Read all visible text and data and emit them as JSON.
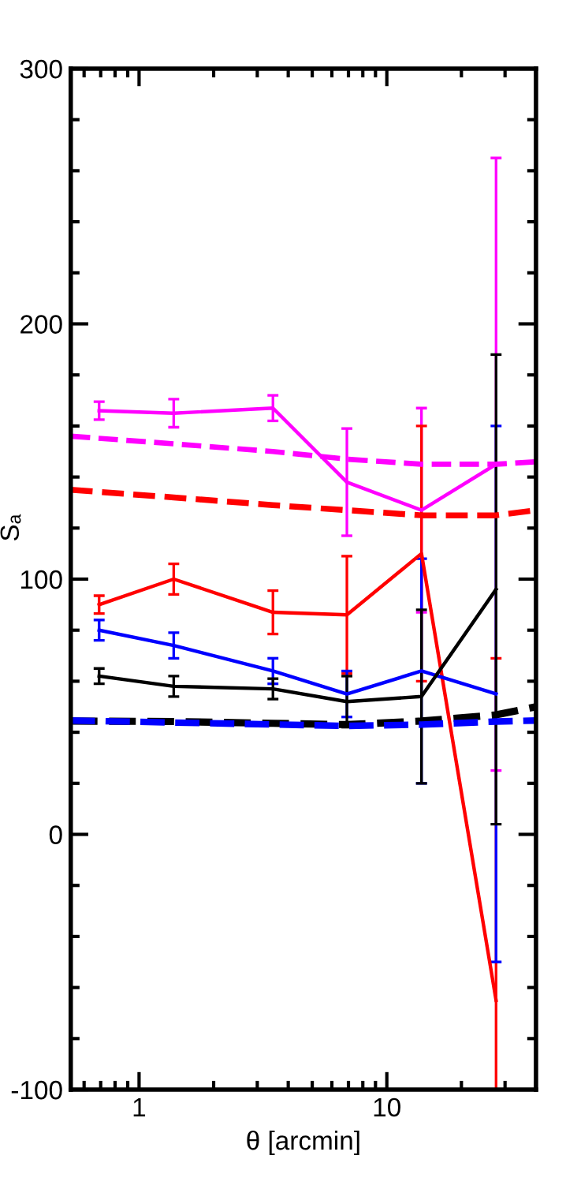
{
  "chart_data": {
    "type": "line",
    "xlabel": "θ [arcmin]",
    "ylabel": "Sₐ",
    "log": "x",
    "xlim": [
      0.53,
      40
    ],
    "xticks": [
      1,
      10
    ],
    "ylim": [
      -100,
      300
    ],
    "yticks": [
      -100,
      0,
      100,
      200,
      300
    ],
    "grid": false,
    "legend": false,
    "marker": "none",
    "series": [
      {
        "color": "#ff00ff",
        "x": [
          0.69,
          1.38,
          3.47,
          6.9,
          13.8,
          27.6
        ],
        "values": [
          166,
          165,
          167,
          138,
          127,
          145
        ],
        "errors": [
          3.5,
          5.5,
          5,
          21,
          40,
          120
        ]
      },
      {
        "color": "#ff0000",
        "x": [
          0.69,
          1.38,
          3.47,
          6.9,
          13.8,
          27.6
        ],
        "values": [
          90,
          100,
          87,
          86,
          110,
          -65
        ],
        "errors": [
          3.5,
          6,
          8.5,
          23,
          50,
          [
            -100,
            69
          ]
        ]
      },
      {
        "color": "#0000ff",
        "x": [
          0.69,
          1.38,
          3.47,
          6.9,
          13.8,
          27.6
        ],
        "values": [
          80,
          74,
          64,
          55,
          64,
          55
        ],
        "errors": [
          4,
          5,
          5,
          9,
          44,
          105
        ]
      },
      {
        "color": "#000000",
        "x": [
          0.69,
          1.38,
          3.47,
          6.9,
          13.8,
          27.6
        ],
        "values": [
          62,
          58,
          57,
          52,
          54,
          96
        ],
        "errors": [
          3,
          4,
          4,
          10,
          34,
          92
        ]
      },
      {
        "color": "#ff00ff",
        "line_style": "dashed",
        "x": [
          0.53,
          1.38,
          3.47,
          6.9,
          13.8,
          27.6,
          40
        ],
        "values": [
          156,
          153,
          150,
          147,
          145,
          145,
          146
        ]
      },
      {
        "color": "#ff0000",
        "line_style": "dashed",
        "x": [
          0.53,
          1.38,
          3.47,
          6.9,
          13.8,
          27.6,
          40
        ],
        "values": [
          135,
          132,
          129,
          127,
          125,
          125,
          127
        ]
      },
      {
        "color": "#0000ff",
        "line_style": "dashed",
        "x": [
          0.53,
          6.9,
          13.8,
          27.6,
          40
        ],
        "values": [
          44.6,
          42.5,
          43,
          44.2,
          44.6
        ]
      },
      {
        "color": "#000000",
        "line_style": "dashed",
        "x": [
          0.53,
          1.38,
          3.47,
          6.9,
          13.8,
          27.6,
          40
        ],
        "values": [
          44.4,
          44.2,
          43.5,
          43,
          44.4,
          46.8,
          50
        ]
      }
    ]
  }
}
